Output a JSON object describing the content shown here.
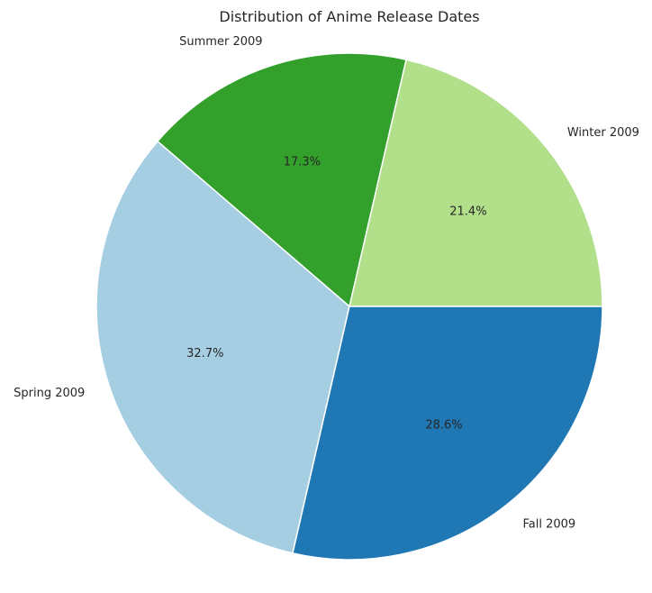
{
  "chart_data": {
    "type": "pie",
    "title": "Distribution of Anime Release Dates",
    "categories": [
      "Winter 2009",
      "Summer 2009",
      "Spring 2009",
      "Fall 2009"
    ],
    "values": [
      21.4,
      17.3,
      32.7,
      28.6
    ],
    "percent_labels": [
      "21.4%",
      "17.3%",
      "32.7%",
      "28.6%"
    ],
    "colors": [
      "#b2df8a",
      "#33a02c",
      "#a6cee3",
      "#1f78b4"
    ],
    "start_angle_deg": 0,
    "direction": "counterclockwise",
    "legend": "none"
  }
}
